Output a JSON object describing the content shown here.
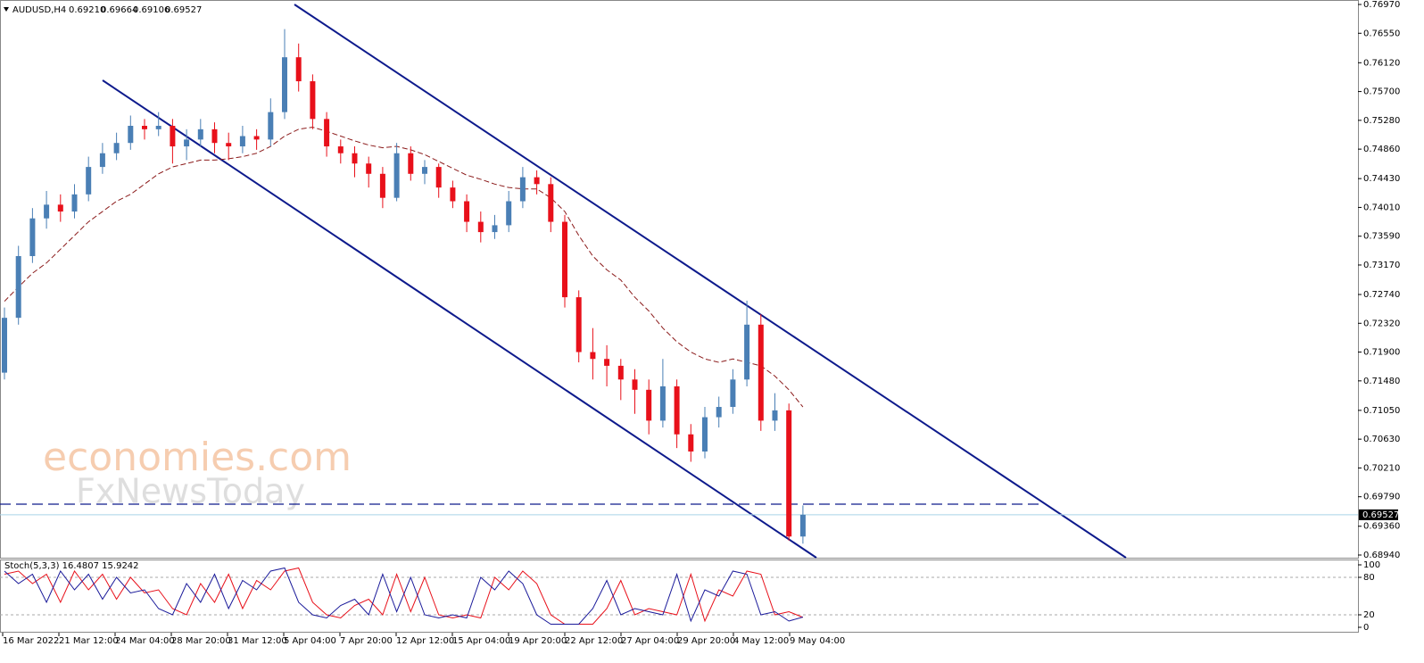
{
  "header": {
    "symbol": "AUDUSD,H4",
    "open": "0.69210",
    "high": "0.69664",
    "low": "0.69106",
    "close": "0.69527"
  },
  "chart": {
    "type": "candlestick",
    "ylim": [
      0.6894,
      0.7697
    ],
    "yticks": [
      {
        "value": 0.7697,
        "label": "0.76970"
      },
      {
        "value": 0.7655,
        "label": "0.76550"
      },
      {
        "value": 0.7612,
        "label": "0.76120"
      },
      {
        "value": 0.757,
        "label": "0.75700"
      },
      {
        "value": 0.7528,
        "label": "0.75280"
      },
      {
        "value": 0.7486,
        "label": "0.74860"
      },
      {
        "value": 0.7443,
        "label": "0.74430"
      },
      {
        "value": 0.7401,
        "label": "0.74010"
      },
      {
        "value": 0.7359,
        "label": "0.73590"
      },
      {
        "value": 0.7317,
        "label": "0.73170"
      },
      {
        "value": 0.7274,
        "label": "0.72740"
      },
      {
        "value": 0.7232,
        "label": "0.72320"
      },
      {
        "value": 0.719,
        "label": "0.71900"
      },
      {
        "value": 0.7148,
        "label": "0.71480"
      },
      {
        "value": 0.7105,
        "label": "0.71050"
      },
      {
        "value": 0.7063,
        "label": "0.70630"
      },
      {
        "value": 0.7021,
        "label": "0.70210"
      },
      {
        "value": 0.6979,
        "label": "0.69790"
      },
      {
        "value": 0.6936,
        "label": "0.69360"
      },
      {
        "value": 0.6894,
        "label": "0.68940"
      }
    ],
    "current_price": {
      "value": 0.69527,
      "label": "0.69527"
    },
    "up_color": "#4a7fb5",
    "down_color": "#e8101a",
    "ma_color": "#8b1a1a",
    "candles": [
      [
        0.716,
        0.7255,
        0.715,
        0.724
      ],
      [
        0.724,
        0.7345,
        0.723,
        0.733
      ],
      [
        0.733,
        0.74,
        0.732,
        0.7385
      ],
      [
        0.7385,
        0.7425,
        0.737,
        0.7405
      ],
      [
        0.7405,
        0.742,
        0.738,
        0.7395
      ],
      [
        0.7395,
        0.7435,
        0.7385,
        0.742
      ],
      [
        0.742,
        0.7475,
        0.741,
        0.746
      ],
      [
        0.746,
        0.7495,
        0.745,
        0.748
      ],
      [
        0.748,
        0.751,
        0.747,
        0.7495
      ],
      [
        0.7495,
        0.7535,
        0.7485,
        0.752
      ],
      [
        0.752,
        0.753,
        0.75,
        0.7515
      ],
      [
        0.7515,
        0.754,
        0.7505,
        0.752
      ],
      [
        0.752,
        0.753,
        0.7465,
        0.749
      ],
      [
        0.749,
        0.7515,
        0.747,
        0.75
      ],
      [
        0.75,
        0.753,
        0.749,
        0.7515
      ],
      [
        0.7515,
        0.7525,
        0.748,
        0.7495
      ],
      [
        0.7495,
        0.751,
        0.747,
        0.749
      ],
      [
        0.749,
        0.752,
        0.748,
        0.7505
      ],
      [
        0.7505,
        0.7515,
        0.7485,
        0.75
      ],
      [
        0.75,
        0.756,
        0.749,
        0.754
      ],
      [
        0.754,
        0.7661,
        0.753,
        0.762
      ],
      [
        0.762,
        0.764,
        0.757,
        0.7585
      ],
      [
        0.7585,
        0.7595,
        0.7515,
        0.753
      ],
      [
        0.753,
        0.754,
        0.7475,
        0.749
      ],
      [
        0.749,
        0.75,
        0.7465,
        0.748
      ],
      [
        0.748,
        0.749,
        0.7445,
        0.7465
      ],
      [
        0.7465,
        0.7475,
        0.743,
        0.745
      ],
      [
        0.745,
        0.746,
        0.74,
        0.7415
      ],
      [
        0.7415,
        0.7495,
        0.741,
        0.748
      ],
      [
        0.748,
        0.749,
        0.744,
        0.745
      ],
      [
        0.745,
        0.747,
        0.7435,
        0.746
      ],
      [
        0.746,
        0.7465,
        0.7415,
        0.743
      ],
      [
        0.743,
        0.744,
        0.74,
        0.741
      ],
      [
        0.741,
        0.742,
        0.7365,
        0.738
      ],
      [
        0.738,
        0.7395,
        0.735,
        0.7365
      ],
      [
        0.7365,
        0.739,
        0.7355,
        0.7375
      ],
      [
        0.7375,
        0.7425,
        0.7365,
        0.741
      ],
      [
        0.741,
        0.746,
        0.74,
        0.7445
      ],
      [
        0.7445,
        0.7455,
        0.742,
        0.7435
      ],
      [
        0.7435,
        0.7445,
        0.7365,
        0.738
      ],
      [
        0.738,
        0.739,
        0.7255,
        0.727
      ],
      [
        0.727,
        0.728,
        0.7175,
        0.719
      ],
      [
        0.719,
        0.7225,
        0.715,
        0.718
      ],
      [
        0.718,
        0.72,
        0.714,
        0.717
      ],
      [
        0.717,
        0.718,
        0.712,
        0.715
      ],
      [
        0.715,
        0.7165,
        0.71,
        0.7135
      ],
      [
        0.7135,
        0.715,
        0.707,
        0.709
      ],
      [
        0.709,
        0.718,
        0.708,
        0.714
      ],
      [
        0.714,
        0.715,
        0.705,
        0.707
      ],
      [
        0.707,
        0.7085,
        0.703,
        0.7045
      ],
      [
        0.7045,
        0.711,
        0.7035,
        0.7095
      ],
      [
        0.7095,
        0.7125,
        0.708,
        0.711
      ],
      [
        0.711,
        0.7165,
        0.71,
        0.715
      ],
      [
        0.715,
        0.7265,
        0.714,
        0.723
      ],
      [
        0.723,
        0.7245,
        0.7075,
        0.709
      ],
      [
        0.709,
        0.713,
        0.7075,
        0.7105
      ],
      [
        0.7105,
        0.7115,
        0.6915,
        0.6921
      ],
      [
        0.6921,
        0.69664,
        0.69106,
        0.69527
      ]
    ],
    "ma": [
      0.7264,
      0.7285,
      0.7305,
      0.732,
      0.734,
      0.736,
      0.738,
      0.7395,
      0.741,
      0.742,
      0.7435,
      0.745,
      0.746,
      0.7465,
      0.747,
      0.747,
      0.7472,
      0.7475,
      0.748,
      0.749,
      0.7505,
      0.7515,
      0.7518,
      0.7512,
      0.7505,
      0.7498,
      0.7492,
      0.7488,
      0.749,
      0.7485,
      0.7478,
      0.7468,
      0.7458,
      0.7448,
      0.7442,
      0.7435,
      0.743,
      0.7428,
      0.7428,
      0.7415,
      0.7395,
      0.736,
      0.733,
      0.731,
      0.7295,
      0.727,
      0.725,
      0.7225,
      0.7205,
      0.719,
      0.718,
      0.7175,
      0.718,
      0.7175,
      0.717,
      0.7155,
      0.7135,
      0.711
    ],
    "time_labels": [
      "16 Mar 2022",
      "21 Mar 12:00",
      "24 Mar 04:00",
      "28 Mar 20:00",
      "31 Mar 12:00",
      "5 Apr 04:00",
      "7 Apr 20:00",
      "12 Apr 12:00",
      "15 Apr 04:00",
      "19 Apr 20:00",
      "22 Apr 12:00",
      "27 Apr 04:00",
      "29 Apr 20:00",
      "4 May 12:00",
      "9 May 04:00"
    ]
  },
  "stoch": {
    "label": "Stoch(5,3,3) 16.4807 15.9242",
    "ylim": [
      0,
      100
    ],
    "yticks": [
      100,
      80,
      20,
      0
    ],
    "main_color": "#1a1a9a",
    "signal_color": "#e8101a",
    "main": [
      90,
      70,
      85,
      40,
      90,
      60,
      85,
      45,
      80,
      55,
      60,
      30,
      20,
      70,
      40,
      85,
      30,
      75,
      60,
      90,
      95,
      40,
      20,
      15,
      35,
      45,
      20,
      85,
      25,
      80,
      20,
      15,
      20,
      15,
      80,
      60,
      90,
      70,
      20,
      5,
      5,
      5,
      30,
      75,
      20,
      30,
      25,
      20,
      85,
      10,
      60,
      50,
      90,
      85,
      20,
      25,
      10,
      16.4807
    ],
    "signal": [
      85,
      90,
      70,
      85,
      40,
      90,
      60,
      85,
      45,
      80,
      55,
      60,
      30,
      20,
      70,
      40,
      85,
      30,
      75,
      60,
      90,
      95,
      40,
      20,
      15,
      35,
      45,
      20,
      85,
      25,
      80,
      20,
      15,
      20,
      15,
      80,
      60,
      90,
      70,
      20,
      5,
      5,
      5,
      30,
      75,
      20,
      30,
      25,
      20,
      85,
      10,
      60,
      50,
      90,
      85,
      20,
      25,
      15.9242
    ]
  },
  "watermark": {
    "line1": "economies.com",
    "line2": "FxNewsToday"
  }
}
